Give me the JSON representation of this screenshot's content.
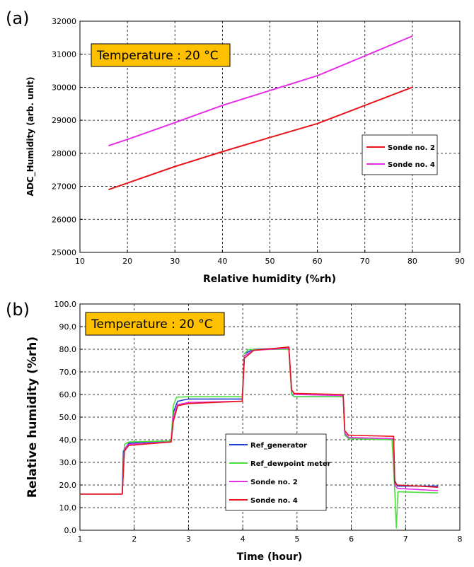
{
  "chart_data": [
    {
      "type": "line",
      "panel_label": "(a)",
      "annotation": "Temperature : 20 °C",
      "xlabel": "Relative humidity (%rh)",
      "ylabel": "ADC_Humidity (arb. unit)",
      "xlim": [
        10,
        90
      ],
      "ylim": [
        25000,
        32000
      ],
      "xticks": [
        10,
        20,
        30,
        40,
        50,
        60,
        70,
        80,
        90
      ],
      "yticks": [
        25000,
        26000,
        27000,
        28000,
        29000,
        30000,
        31000,
        32000
      ],
      "grid": true,
      "legend_position": "right",
      "series": [
        {
          "name": "Sonde no. 2",
          "color": "#e8141c",
          "x": [
            16,
            20,
            30,
            40,
            50,
            60,
            70,
            80
          ],
          "y": [
            26900,
            27100,
            27600,
            28050,
            28480,
            28900,
            29450,
            30000
          ]
        },
        {
          "name": "Sonde no. 4",
          "color": "#e62ee6",
          "x": [
            16,
            20,
            30,
            40,
            50,
            60,
            70,
            80
          ],
          "y": [
            28230,
            28420,
            28930,
            29450,
            29900,
            30350,
            30950,
            31550
          ]
        }
      ]
    },
    {
      "type": "line",
      "panel_label": "(b)",
      "annotation": "Temperature : 20 °C",
      "xlabel": "Time (hour)",
      "ylabel": "Relative humidity (%rh)",
      "xlim": [
        1,
        8
      ],
      "ylim": [
        0,
        100
      ],
      "xticks": [
        1,
        2,
        3,
        4,
        5,
        6,
        7,
        8
      ],
      "yticks": [
        0.0,
        10.0,
        20.0,
        30.0,
        40.0,
        50.0,
        60.0,
        70.0,
        80.0,
        90.0,
        100.0
      ],
      "grid": true,
      "legend_position": "bottom-center",
      "series": [
        {
          "name": "Ref_generator",
          "color": "#1f3fd6",
          "x": [
            1.0,
            1.78,
            1.8,
            1.9,
            2.68,
            2.72,
            2.8,
            3.0,
            3.99,
            4.03,
            4.2,
            4.85,
            4.9,
            4.95,
            5.85,
            5.88,
            5.95,
            6.78,
            6.8,
            6.85,
            7.6
          ],
          "y": [
            16.0,
            16.0,
            35.0,
            38.5,
            39.5,
            52.0,
            57.0,
            58.0,
            58.0,
            78.0,
            80.0,
            80.5,
            60.0,
            59.0,
            59.0,
            43.0,
            40.5,
            40.0,
            22.0,
            19.5,
            19.5
          ]
        },
        {
          "name": "Ref_dewpoint meter",
          "color": "#4be03c",
          "x": [
            1.0,
            1.78,
            1.82,
            1.9,
            2.68,
            2.72,
            2.78,
            3.0,
            3.99,
            4.03,
            4.1,
            4.85,
            4.9,
            4.95,
            5.85,
            5.88,
            5.95,
            6.75,
            6.8,
            6.83,
            6.86,
            7.6
          ],
          "y": [
            16.0,
            16.0,
            38.0,
            39.0,
            39.5,
            55.0,
            58.8,
            59.0,
            59.0,
            78.0,
            79.8,
            80.0,
            60.0,
            59.0,
            59.0,
            42.0,
            40.5,
            40.0,
            18.0,
            1.0,
            17.0,
            16.5
          ]
        },
        {
          "name": "Sonde no. 2",
          "color": "#e62ee6",
          "x": [
            1.0,
            1.78,
            1.82,
            1.9,
            2.68,
            2.72,
            2.8,
            3.0,
            3.99,
            4.03,
            4.2,
            4.85,
            4.9,
            4.95,
            5.85,
            5.88,
            5.95,
            6.78,
            6.8,
            6.85,
            7.6
          ],
          "y": [
            16.0,
            16.0,
            36.0,
            38.0,
            39.0,
            50.0,
            55.5,
            56.5,
            57.0,
            77.0,
            79.5,
            80.5,
            62.0,
            60.0,
            59.5,
            43.0,
            41.0,
            40.5,
            20.0,
            18.5,
            17.5
          ]
        },
        {
          "name": "Sonde no. 4",
          "color": "#e8141c",
          "x": [
            1.0,
            1.78,
            1.82,
            1.9,
            2.68,
            2.72,
            2.8,
            3.0,
            3.99,
            4.03,
            4.2,
            4.85,
            4.9,
            4.95,
            5.85,
            5.88,
            5.95,
            6.78,
            6.8,
            6.85,
            7.6
          ],
          "y": [
            16.0,
            16.0,
            35.0,
            37.5,
            39.0,
            48.0,
            55.0,
            56.0,
            57.0,
            76.0,
            79.5,
            81.0,
            62.0,
            60.5,
            60.0,
            44.0,
            42.0,
            41.5,
            21.0,
            20.0,
            19.0
          ]
        }
      ]
    }
  ]
}
